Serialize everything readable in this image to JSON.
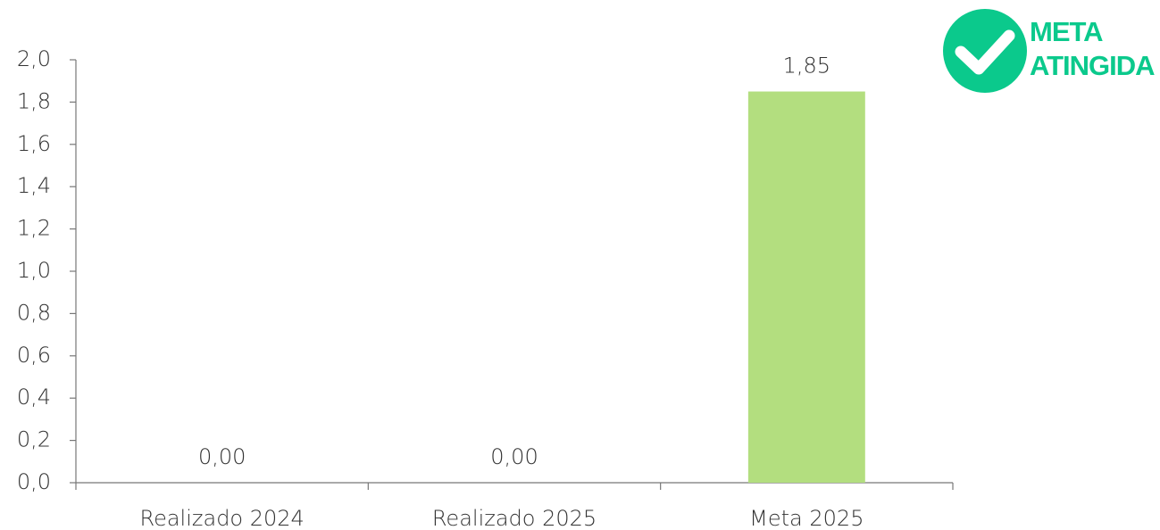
{
  "chart_data": {
    "type": "bar",
    "categories": [
      "Realizado 2024",
      "Realizado 2025",
      "Meta 2025"
    ],
    "values": [
      0,
      0,
      1.85
    ],
    "value_labels": [
      "0,00",
      "0,00",
      "1,85"
    ],
    "color": "#b3de7f",
    "ylim": [
      0,
      2
    ],
    "yticks": [
      {
        "value": 0,
        "label": "0,0"
      },
      {
        "value": 0.2,
        "label": "0,2"
      },
      {
        "value": 0.4,
        "label": "0,4"
      },
      {
        "value": 0.6,
        "label": "0,6"
      },
      {
        "value": 0.8,
        "label": "0,8"
      },
      {
        "value": 1,
        "label": "1,0"
      },
      {
        "value": 1.2,
        "label": "1,2"
      },
      {
        "value": 1.4,
        "label": "1,4"
      },
      {
        "value": 1.6,
        "label": "1,6"
      },
      {
        "value": 1.8,
        "label": "1,8"
      },
      {
        "value": 2,
        "label": "2,0"
      }
    ],
    "grid": false,
    "annotations": [
      "META",
      "ATINGIDA"
    ]
  }
}
